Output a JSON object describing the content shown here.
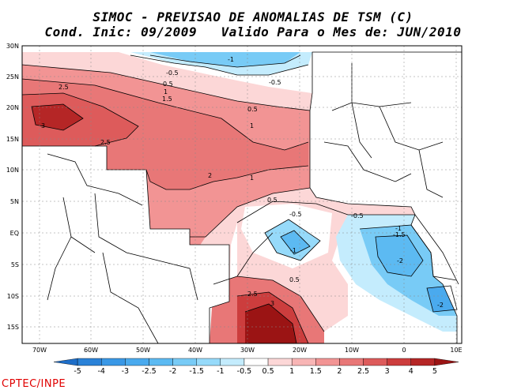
{
  "title_line1": "SIMOC - PREVISAO DE ANOMALIAS DE TSM (C)",
  "title_line2": "Cond. Inic: 09/2009   Valido Para o Mes de: JUN/2010",
  "lat_labels": [
    "30N",
    "25N",
    "20N",
    "15N",
    "10N",
    "5N",
    "EQ",
    "5S",
    "10S",
    "15S"
  ],
  "lon_labels": [
    "70W",
    "60W",
    "50W",
    "40W",
    "30W",
    "20W",
    "10W",
    "0",
    "10E"
  ],
  "contour_labels": [
    "-1",
    "-0.5",
    "-0.5",
    "0.5",
    "1",
    "1.5",
    "2.5",
    "3",
    "2.5",
    "2",
    "1",
    "0.5",
    "1",
    "0.5",
    "-0.5",
    "-0.5",
    "-1",
    "-1",
    "-1.5",
    "-2",
    "-2",
    "0.5",
    "2.5",
    "3"
  ],
  "colorbar": {
    "labels": [
      "-5",
      "-4",
      "-3",
      "-2.5",
      "-2",
      "-1.5",
      "-1",
      "-0.5",
      "0.5",
      "1",
      "1.5",
      "2",
      "2.5",
      "3",
      "4",
      "5"
    ],
    "colors": [
      "#1e6ec8",
      "#2b82d8",
      "#3a98e6",
      "#4aaaee",
      "#5cbaf2",
      "#78cbf6",
      "#96dafa",
      "#c4ecfd",
      "#ffffff",
      "#fcd7d7",
      "#f8b5b5",
      "#f29494",
      "#e87777",
      "#dd5b5b",
      "#cc3d3d",
      "#b52626",
      "#9b1414"
    ]
  },
  "credit": "CPTEC/INPE"
}
